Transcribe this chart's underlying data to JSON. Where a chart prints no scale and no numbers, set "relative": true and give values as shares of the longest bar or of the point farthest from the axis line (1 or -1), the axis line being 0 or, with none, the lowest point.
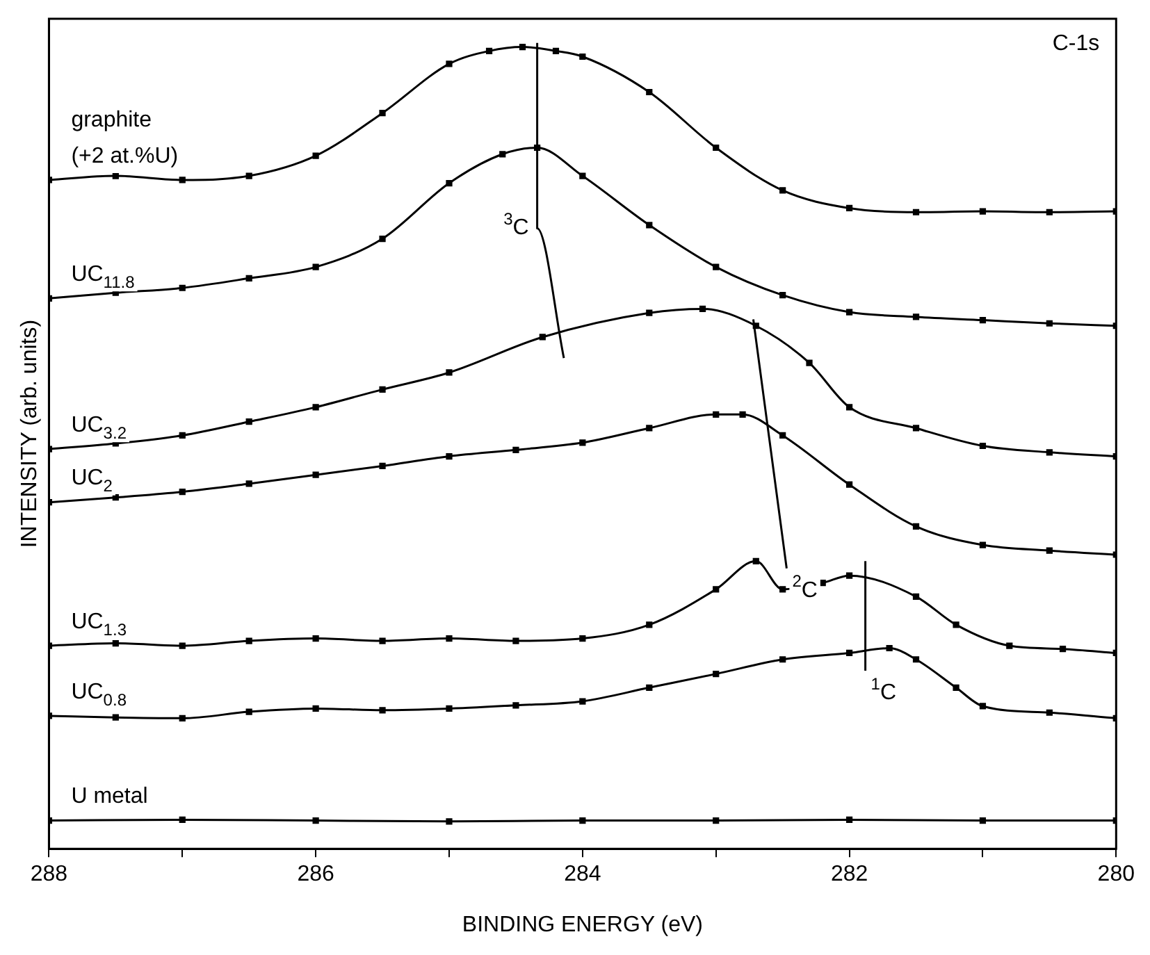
{
  "chart_data": {
    "type": "line",
    "xlabel": "BINDING ENERGY (eV)",
    "ylabel": "INTENSITY (arb. units)",
    "relative": true,
    "xlim": [
      288,
      280
    ],
    "xticks": [
      288,
      {
        "value": 287,
        "label": null
      },
      286,
      {
        "value": 285,
        "label": null
      },
      284,
      {
        "value": 283,
        "label": null
      },
      282,
      {
        "value": 281,
        "label": null
      },
      280
    ],
    "grid": false,
    "marker": "square",
    "line_style": "solid",
    "series": [
      {
        "name": "graphite (+2 at.%U)",
        "color": "#000000",
        "x": [
          288,
          287.5,
          287,
          286.5,
          286,
          285.5,
          285,
          284.7,
          284.45,
          284.2,
          284,
          283.5,
          283,
          282.5,
          282,
          281.5,
          281,
          280.5,
          280
        ],
        "values": [
          0.83,
          0.835,
          0.83,
          0.835,
          0.86,
          0.913,
          0.974,
          0.99,
          0.995,
          0.99,
          0.983,
          0.939,
          0.87,
          0.817,
          0.795,
          0.79,
          0.791,
          0.79,
          0.791
        ]
      },
      {
        "name": "UC$_{11.8}$",
        "color": "#000000",
        "x": [
          288,
          287.5,
          287,
          286.5,
          286,
          285.5,
          285,
          284.6,
          284.34,
          284,
          283.5,
          283,
          282.5,
          282,
          281.5,
          281,
          280.5,
          280
        ],
        "values": [
          0.683,
          0.69,
          0.696,
          0.708,
          0.722,
          0.757,
          0.826,
          0.862,
          0.87,
          0.835,
          0.774,
          0.722,
          0.687,
          0.666,
          0.66,
          0.656,
          0.652,
          0.649
        ]
      },
      {
        "name": "UC$_{3.2}$",
        "color": "#000000",
        "x": [
          288,
          287.5,
          287,
          286.5,
          286,
          285.5,
          285,
          284.3,
          283.5,
          283.1,
          282.7,
          282.3,
          282,
          281.5,
          281,
          280.5,
          280
        ],
        "values": [
          0.496,
          0.503,
          0.513,
          0.53,
          0.548,
          0.57,
          0.591,
          0.635,
          0.665,
          0.67,
          0.649,
          0.603,
          0.548,
          0.522,
          0.5,
          0.492,
          0.487
        ]
      },
      {
        "name": "UC$_{2}$",
        "color": "#000000",
        "x": [
          288,
          287.5,
          287,
          286.5,
          286,
          285.5,
          285,
          284.5,
          284,
          283.5,
          283,
          282.8,
          282.5,
          282,
          281.5,
          281,
          280.5,
          280
        ],
        "values": [
          0.43,
          0.436,
          0.443,
          0.453,
          0.464,
          0.475,
          0.487,
          0.495,
          0.504,
          0.522,
          0.539,
          0.539,
          0.513,
          0.452,
          0.4,
          0.377,
          0.37,
          0.365
        ]
      },
      {
        "name": "UC$_{1.3}$",
        "color": "#000000",
        "x": [
          288,
          287.5,
          287,
          286.5,
          286,
          285.5,
          285,
          284.5,
          284,
          283.5,
          283,
          282.7,
          282.5,
          282.2,
          282,
          281.5,
          281.2,
          280.8,
          280.4,
          280
        ],
        "values": [
          0.252,
          0.255,
          0.252,
          0.258,
          0.261,
          0.258,
          0.261,
          0.258,
          0.261,
          0.278,
          0.322,
          0.357,
          0.322,
          0.33,
          0.339,
          0.313,
          0.278,
          0.252,
          0.248,
          0.243
        ]
      },
      {
        "name": "UC$_{0.8}$",
        "color": "#000000",
        "x": [
          288,
          287.5,
          287,
          286.5,
          286,
          285.5,
          285,
          284.5,
          284,
          283.5,
          283,
          282.5,
          282,
          281.7,
          281.5,
          281.2,
          281,
          280.5,
          280
        ],
        "values": [
          0.165,
          0.163,
          0.162,
          0.17,
          0.174,
          0.172,
          0.174,
          0.178,
          0.183,
          0.2,
          0.217,
          0.235,
          0.243,
          0.249,
          0.235,
          0.2,
          0.177,
          0.169,
          0.162
        ]
      },
      {
        "name": "U metal",
        "color": "#000000",
        "x": [
          288,
          287,
          286,
          285,
          284,
          283,
          282,
          281,
          280
        ],
        "values": [
          0.035,
          0.036,
          0.035,
          0.034,
          0.035,
          0.035,
          0.036,
          0.035,
          0.035
        ]
      },
      {
        "name": "$^{3}$C",
        "color": "#000000",
        "marker": "none",
        "x": [
          284.34,
          284.34,
          284.14
        ],
        "values": [
          1.0,
          0.77,
          0.609
        ]
      },
      {
        "name": "$^{2}$C",
        "color": "#000000",
        "marker": "none",
        "x": [
          282.72,
          282.47
        ],
        "values": [
          0.657,
          0.348
        ]
      },
      {
        "name": "$^{1}$C",
        "color": "#000000",
        "marker": "none",
        "x": [
          281.88,
          281.88
        ],
        "values": [
          0.357,
          0.221
        ]
      }
    ],
    "annotations": [
      "C-1s"
    ]
  }
}
